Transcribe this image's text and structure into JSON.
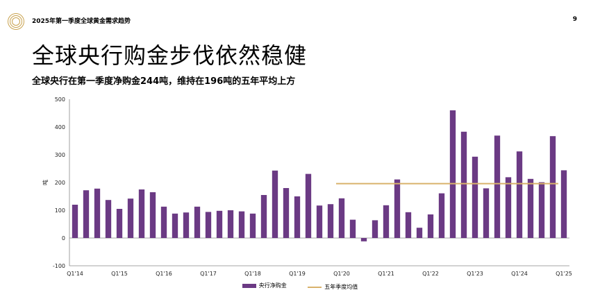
{
  "header": {
    "title": "2025年第一季度全球黄金需求趋势",
    "page_number": "9"
  },
  "main_title": "全球央行购金步伐依然稳健",
  "subtitle": "全球央行在第一季度净购金244吨，维持在196吨的五年平均上方",
  "colors": {
    "bar": "#6b3a84",
    "avg_line": "#d9b26b",
    "logo": "#c9a24e"
  },
  "chart_data": {
    "type": "bar",
    "ylabel": "吨",
    "ylim": [
      -100,
      500
    ],
    "yticks": [
      -100,
      0,
      100,
      200,
      300,
      400,
      500
    ],
    "xtick_labels": [
      "Q1'14",
      "Q1'15",
      "Q1'16",
      "Q1'17",
      "Q1'18",
      "Q1'19",
      "Q1'20",
      "Q1'21",
      "Q1'22",
      "Q1'23",
      "Q1'24",
      "Q1'25"
    ],
    "series": [
      {
        "name": "央行净购金",
        "values": [
          120,
          172,
          178,
          137,
          105,
          142,
          175,
          165,
          113,
          88,
          92,
          113,
          94,
          98,
          100,
          96,
          88,
          155,
          243,
          180,
          150,
          231,
          117,
          122,
          143,
          66,
          -12,
          64,
          118,
          211,
          93,
          37,
          85,
          161,
          460,
          383,
          293,
          179,
          369,
          219,
          312,
          213,
          201,
          367,
          244
        ]
      },
      {
        "name": "五年季度均值",
        "value": 196
      }
    ],
    "grid": false
  },
  "legend": {
    "bar_label": "央行净购金",
    "line_label": "五年季度均值"
  }
}
